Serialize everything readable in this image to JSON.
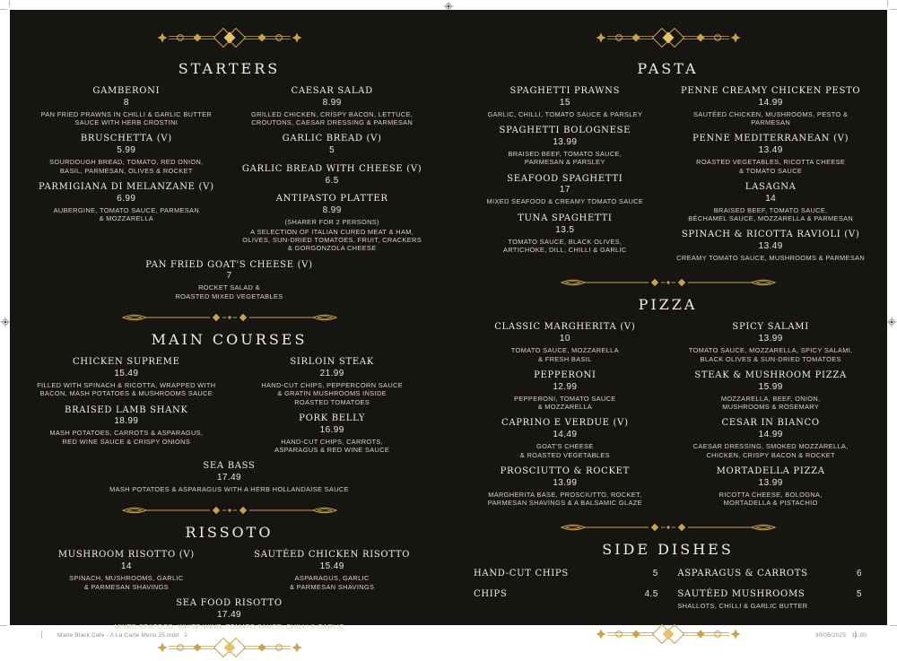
{
  "colors": {
    "spread_background": "#171512",
    "gold_accent": "#C8A24C",
    "heading_text": "#F2EEE6",
    "description_text": "#D8D3CA"
  },
  "footer": {
    "left": "Matte Black Cafe - A La Carte Menu 25.indd   2",
    "right": "30/05/2025   11:20"
  },
  "pages": [
    {
      "side": "left",
      "sections": [
        {
          "title": "STARTERS",
          "columns": [
            {
              "items": [
                {
                  "name": "GAMBERONI",
                  "price": "8",
                  "desc": "PAN FRIED PRAWNS IN CHILLI & GARLIC BUTTER\nSAUCE WITH HERB CROSTINI"
                },
                {
                  "name": "BRUSCHETTA (V)",
                  "price": "5.99",
                  "desc": "SOURDOUGH BREAD, TOMATO, RED ONION,\nBASIL, PARMESAN, OLIVES & ROCKET"
                },
                {
                  "name": "PARMIGIANA DI MELANZANE (V)",
                  "price": "6.99",
                  "desc": "AUBERGINE, TOMATO SAUCE, PARMESAN\n& MOZZARELLA"
                }
              ]
            },
            {
              "items": [
                {
                  "name": "CAESAR SALAD",
                  "price": "8.99",
                  "desc": "GRILLED CHICKEN, CRISPY BACON, LETTUCE,\nCROUTONS, CAESAR DRESSING & PARMESAN"
                },
                {
                  "name": "GARLIC BREAD (V)",
                  "price": "5"
                },
                {
                  "name": "GARLIC BREAD WITH CHEESE (V)",
                  "price": "6.5"
                },
                {
                  "name": "ANTIPASTO PLATTER",
                  "price": "8.99",
                  "note": "(SHARER FOR 2 PERSONS)",
                  "desc": "A SELECTION OF ITALIAN CURED MEAT & HAM,\nOLIVES, SUN-DRIED TOMATOES, FRUIT, CRACKERS\n& GORGONZOLA CHEESE"
                }
              ]
            }
          ],
          "centered": [
            {
              "name": "PAN FRIED GOAT'S CHEESE (V)",
              "price": "7",
              "desc": "ROCKET SALAD &\nROASTED MIXED VEGETABLES"
            }
          ]
        },
        {
          "title": "MAIN COURSES",
          "columns": [
            {
              "items": [
                {
                  "name": "CHICKEN SUPREME",
                  "price": "15.49",
                  "desc": "FILLED WITH SPINACH & RICOTTA, WRAPPED WITH\nBACON, MASH POTATOES & MUSHROOMS SAUCE"
                },
                {
                  "name": "BRAISED LAMB SHANK",
                  "price": "18.99",
                  "desc": "MASH POTATOES, CARROTS & ASPARAGUS,\nRED WINE SAUCE & CRISPY ONIONS"
                }
              ]
            },
            {
              "items": [
                {
                  "name": "SIRLOIN STEAK",
                  "price": "21.99",
                  "desc": "HAND-CUT CHIPS, PEPPERCORN SAUCE\n& GRATIN MUSHROOMS INSIDE\nROASTED TOMATOES"
                },
                {
                  "name": "PORK BELLY",
                  "price": "16.99",
                  "desc": "HAND-CUT CHIPS, CARROTS,\nASPARAGUS & RED WINE SAUCE"
                }
              ]
            }
          ],
          "centered": [
            {
              "name": "SEA BASS",
              "price": "17.49",
              "desc": "MASH POTATOES & ASPARAGUS WITH A HERB HOLLANDAISE SAUCE"
            }
          ]
        },
        {
          "title": "RISSOTO",
          "columns": [
            {
              "items": [
                {
                  "name": "MUSHROOM RISOTTO (V)",
                  "price": "14",
                  "desc": "SPINACH, MUSHROOMS, GARLIC\n& PARMESAN SHAVINGS"
                }
              ]
            },
            {
              "items": [
                {
                  "name": "SAUTÉED CHICKEN RISOTTO",
                  "price": "15.49",
                  "desc": "ASPARAGUS, GARLIC\n& PARMESAN SHAVINGS"
                }
              ]
            }
          ],
          "centered": [
            {
              "name": "SEA FOOD RISOTTO",
              "price": "17.49",
              "desc": "MIXED SEAFOOD, WHITE WINE, TOMATO SAUCE, CHILLI & GARLIC"
            }
          ]
        }
      ]
    },
    {
      "side": "right",
      "sections": [
        {
          "title": "PASTA",
          "columns": [
            {
              "items": [
                {
                  "name": "SPAGHETTI PRAWNS",
                  "price": "15",
                  "desc": "GARLIC, CHILLI, TOMATO SAUCE & PARSLEY"
                },
                {
                  "name": "SPAGHETTI BOLOGNESE",
                  "price": "13.99",
                  "desc": "BRAISED BEEF, TOMATO SAUCE,\nPARMESAN & PARSLEY"
                },
                {
                  "name": "SEAFOOD SPAGHETTI",
                  "price": "17",
                  "desc": "MIXED SEAFOOD & CREAMY TOMATO SAUCE"
                },
                {
                  "name": "TUNA SPAGHETTI",
                  "price": "13.5",
                  "desc": "TOMATO SAUCE, BLACK OLIVES,\nARTICHOKE, DILL, CHILLI & GARLIC"
                }
              ]
            },
            {
              "items": [
                {
                  "name": "PENNE CREAMY CHICKEN PESTO",
                  "price": "14.99",
                  "desc": "SAUTÉED CHICKEN, MUSHROOMS, PESTO & PARMESAN"
                },
                {
                  "name": "PENNE MEDITERRANEAN (V)",
                  "price": "13.49",
                  "desc": "ROASTED VEGETABLES, RICOTTA CHEESE\n& TOMATO SAUCE"
                },
                {
                  "name": "LASAGNA",
                  "price": "14",
                  "desc": "BRAISED BEEF, TOMATO SAUCE,\nBÉCHAMEL SAUCE, MOZZARELLA & PARMESAN"
                },
                {
                  "name": "SPINACH & RICOTTA RAVIOLI (V)",
                  "price": "13.49",
                  "desc": "CREAMY TOMATO SAUCE, MUSHROOMS & PARMESAN"
                }
              ]
            }
          ]
        },
        {
          "title": "PIZZA",
          "columns": [
            {
              "items": [
                {
                  "name": "CLASSIC MARGHERITA (V)",
                  "price": "10",
                  "desc": "TOMATO SAUCE, MOZZARELLA\n& FRESH BASIL"
                },
                {
                  "name": "PEPPERONI",
                  "price": "12.99",
                  "desc": "PEPPERONI, TOMATO SAUCE\n& MOZZARELLA"
                },
                {
                  "name": "CAPRINO E VERDUE (V)",
                  "price": "14.49",
                  "desc": "GOAT'S CHEESE\n& ROASTED VEGETABLES"
                },
                {
                  "name": "PROSCIUTTO & ROCKET",
                  "price": "13.99",
                  "desc": "MARGHERITA BASE, PROSCIUTTO, ROCKET,\nPARMESAN SHAVINGS & A BALSAMIC GLAZE"
                }
              ]
            },
            {
              "items": [
                {
                  "name": "SPICY SALAMI",
                  "price": "13.99",
                  "desc": "TOMATO SAUCE, MOZZARELLA, SPICY SALAMI,\nBLACK OLIVES & SUN-DRIED TOMATOES"
                },
                {
                  "name": "STEAK & MUSHROOM PIZZA",
                  "price": "15.99",
                  "desc": "MOZZARELLA, BEEF, ONION,\nMUSHROOMS & ROSEMARY"
                },
                {
                  "name": "CESAR IN BIANCO",
                  "price": "14.99",
                  "desc": "CAESAR DRESSING, SMOKED MOZZARELLA,\nCHICKEN, CRISPY BACON & ROCKET"
                },
                {
                  "name": "MORTADELLA PIZZA",
                  "price": "13.99",
                  "desc": "RICOTTA CHEESE, BOLOGNA,\nMORTADELLA & PISTACHIO"
                }
              ]
            }
          ]
        },
        {
          "title": "SIDE DISHES",
          "side_columns": [
            {
              "items": [
                {
                  "name": "HAND-CUT CHIPS",
                  "price": "5"
                },
                {
                  "name": "CHIPS",
                  "price": "4.5"
                }
              ]
            },
            {
              "items": [
                {
                  "name": "ASPARAGUS & CARROTS",
                  "price": "6"
                },
                {
                  "name": "SAUTÉED MUSHROOMS",
                  "price": "5",
                  "desc": "SHALLOTS, CHILLI & GARLIC BUTTER"
                }
              ]
            }
          ]
        }
      ]
    }
  ]
}
